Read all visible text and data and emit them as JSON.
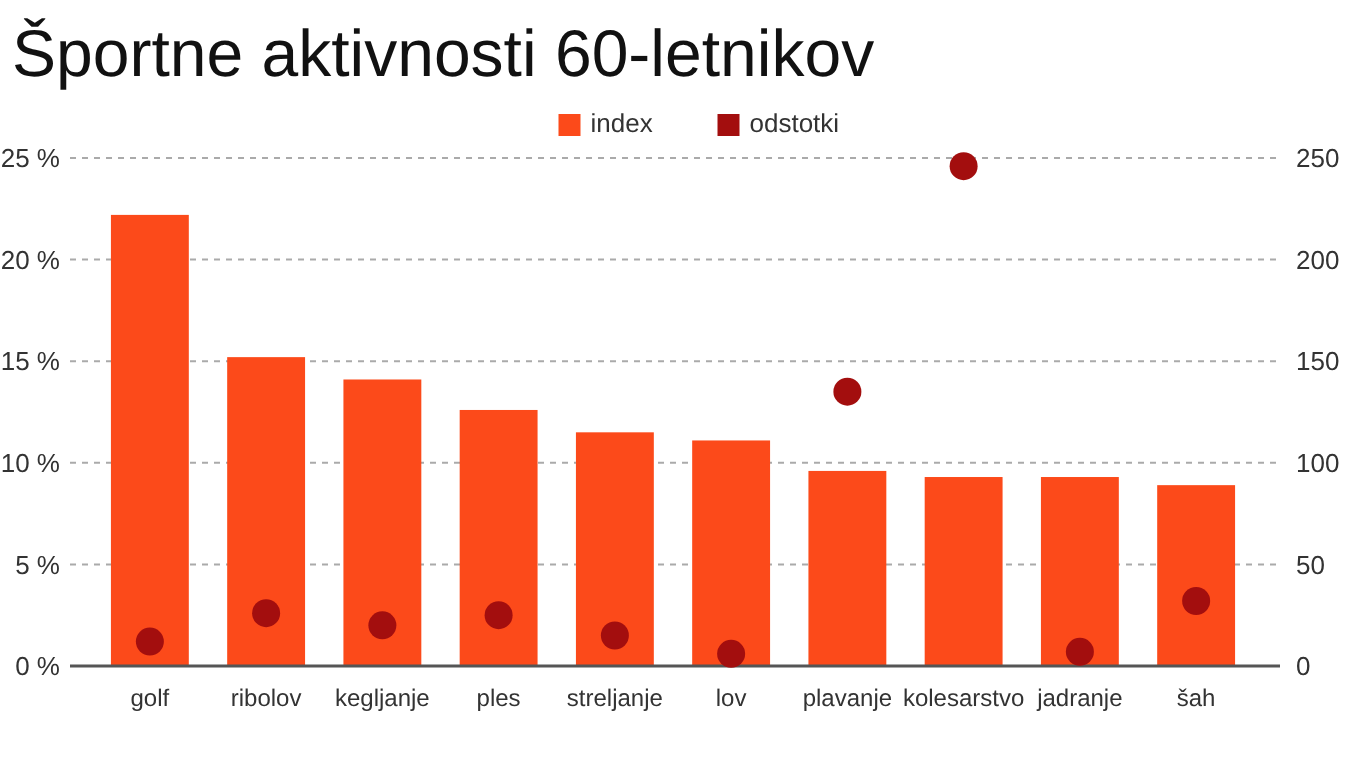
{
  "chart_data": {
    "type": "bar",
    "title": "Športne aktivnosti 60-letnikov",
    "categories": [
      "golf",
      "ribolov",
      "kegljanje",
      "ples",
      "streljanje",
      "lov",
      "plavanje",
      "kolesarstvo",
      "jadranje",
      "šah"
    ],
    "series": [
      {
        "name": "index",
        "axis": "y2",
        "color": "#fc4a1a",
        "values": [
          222,
          152,
          141,
          126,
          115,
          111,
          96,
          93,
          93,
          89
        ]
      },
      {
        "name": "odstotki",
        "type": "scatter",
        "color": "#a30e0e",
        "values": [
          1.2,
          2.6,
          2.0,
          2.5,
          1.5,
          0.6,
          13.5,
          24.6,
          0.7,
          3.2
        ]
      }
    ],
    "ylim": [
      0,
      25
    ],
    "yticks": [
      {
        "value": 0,
        "label": "0 %"
      },
      {
        "value": 5,
        "label": "5 %"
      },
      {
        "value": 10,
        "label": "10 %"
      },
      {
        "value": 15,
        "label": "15 %"
      },
      {
        "value": 20,
        "label": "20 %"
      },
      {
        "value": 25,
        "label": "25 %"
      }
    ],
    "y2lim": [
      0,
      250
    ],
    "y2ticks": [
      0,
      50,
      100,
      150,
      200,
      250
    ],
    "grid": "y",
    "legend": "top",
    "marker": "circle"
  }
}
